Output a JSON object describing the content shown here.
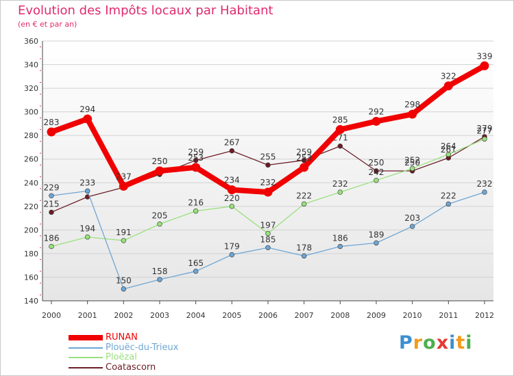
{
  "chart_data": {
    "type": "line",
    "title": "Evolution des Impôts locaux par Habitant",
    "subtitle": "(en € et par an)",
    "xlabel": "",
    "ylabel": "",
    "ylim": [
      140,
      360
    ],
    "yticks": [
      140,
      160,
      180,
      200,
      220,
      240,
      260,
      280,
      300,
      320,
      340,
      360
    ],
    "categories": [
      "2000",
      "2001",
      "2002",
      "2003",
      "2004",
      "2005",
      "2006",
      "2007",
      "2008",
      "2009",
      "2010",
      "2011",
      "2012"
    ],
    "series": [
      {
        "name": "Coatascorn",
        "color": "#6b1d26",
        "values": [
          215,
          228,
          236,
          247,
          259,
          267,
          255,
          259,
          271,
          250,
          250,
          261,
          279
        ],
        "labels": [
          "215",
          "",
          "",
          "",
          "259",
          "267",
          "255",
          "259",
          "271",
          "250",
          "250",
          "261",
          "279"
        ]
      },
      {
        "name": "Ploëzal",
        "color": "#99e07d",
        "values": [
          186,
          194,
          191,
          205,
          216,
          220,
          197,
          222,
          232,
          242,
          252,
          264,
          277
        ],
        "labels": [
          "186",
          "194",
          "191",
          "205",
          "216",
          "220",
          "197",
          "222",
          "232",
          "242",
          "252",
          "264",
          "277"
        ]
      },
      {
        "name": "Plouëc-du-Trieux",
        "color": "#6ea6d4",
        "values": [
          229,
          233,
          150,
          158,
          165,
          179,
          185,
          178,
          186,
          189,
          203,
          222,
          232
        ],
        "labels": [
          "229",
          "233",
          "150",
          "158",
          "165",
          "179",
          "185",
          "178",
          "186",
          "189",
          "203",
          "222",
          "232"
        ]
      },
      {
        "name": "RUNAN",
        "color": "#f00000",
        "values": [
          283,
          294,
          237,
          250,
          253,
          234,
          232,
          253,
          285,
          292,
          298,
          322,
          339
        ],
        "labels": [
          "283",
          "294",
          "237",
          "250",
          "253",
          "234",
          "232",
          "253",
          "285",
          "292",
          "298",
          "322",
          "339"
        ]
      }
    ],
    "legend": [
      {
        "name": "RUNAN",
        "color": "#f00000",
        "thick": true
      },
      {
        "name": "Plouëc-du-Trieux",
        "color": "#6ea6d4",
        "thick": false
      },
      {
        "name": "Ploëzal",
        "color": "#99e07d",
        "thick": false
      },
      {
        "name": "Coatascorn",
        "color": "#6b1d26",
        "thick": false
      }
    ]
  },
  "branding": {
    "letters": [
      "P",
      "r",
      "o",
      "x",
      "i",
      "t",
      "i"
    ],
    "colors": [
      "#3b8fd0",
      "#f39b1c",
      "#4caf50",
      "#e53935",
      "#3b8fd0",
      "#f39b1c",
      "#4caf50"
    ]
  }
}
